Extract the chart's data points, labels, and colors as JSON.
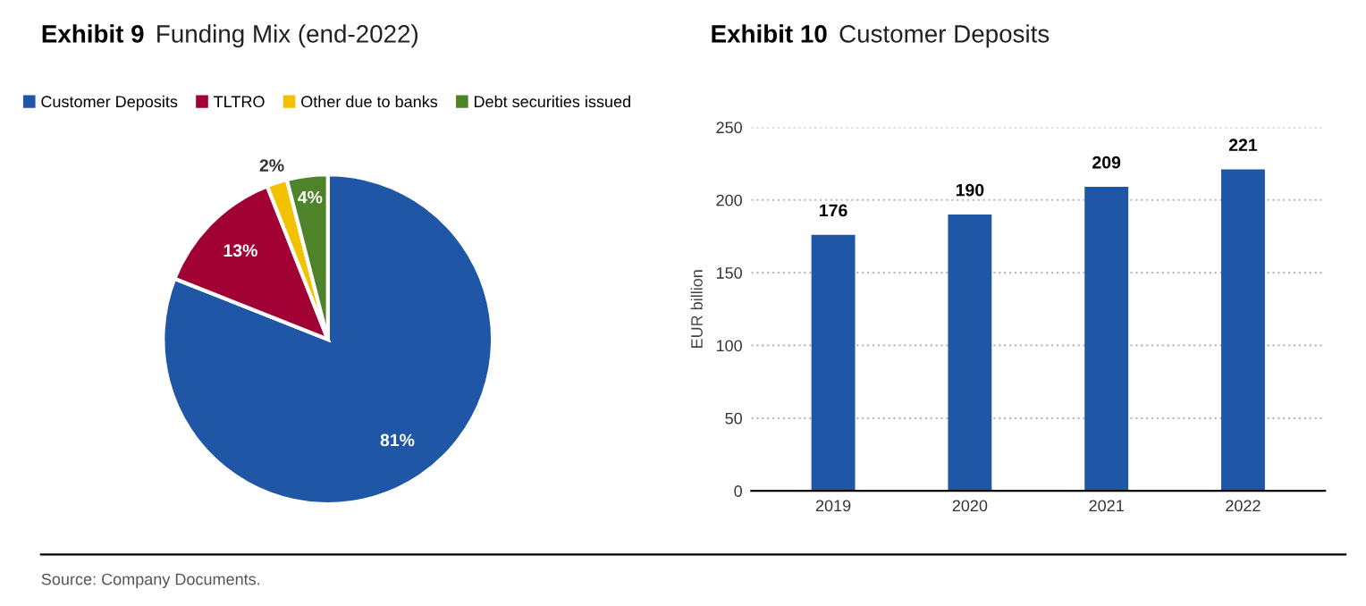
{
  "chart_data": [
    {
      "type": "pie",
      "title": "Exhibit 9 Funding Mix (end-2022)",
      "categories": [
        "Customer Deposits",
        "TLTRO",
        "Other due to banks",
        "Debt securities issued"
      ],
      "values": [
        81,
        13,
        2,
        4
      ],
      "colors": [
        "#1f56a6",
        "#a00033",
        "#f2c200",
        "#4e8329"
      ],
      "value_labels": [
        "81%",
        "13%",
        "2%",
        "4%"
      ],
      "legend": "top",
      "annotations": [
        "Source: Company Documents."
      ]
    },
    {
      "type": "bar",
      "title": "Exhibit 10 Customer Deposits",
      "categories": [
        "2019",
        "2020",
        "2021",
        "2022"
      ],
      "values": [
        176,
        190,
        209,
        221
      ],
      "color": "#1f56a6",
      "ylabel": "EUR billion",
      "ylim": [
        0,
        250
      ],
      "yticks": [
        0,
        50,
        100,
        150,
        200,
        250
      ],
      "grid": "y",
      "data_labels": true
    }
  ]
}
